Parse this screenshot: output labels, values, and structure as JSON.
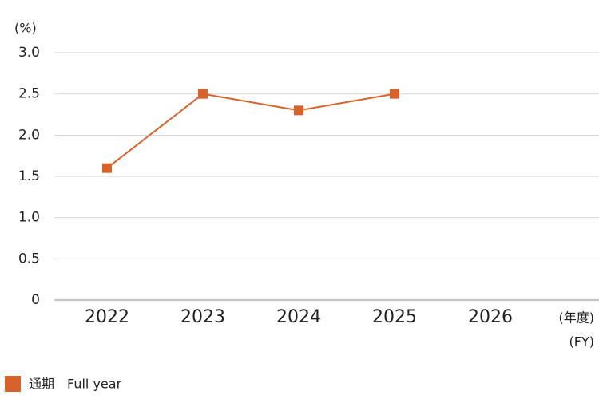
{
  "chart_data": {
    "type": "line",
    "y_unit": "(%)",
    "x_unit": [
      "(年度)",
      "(FY)"
    ],
    "categories": [
      "2022",
      "2023",
      "2024",
      "2025",
      "2026"
    ],
    "series": [
      {
        "name": "通期　Full year",
        "color": "#d9622b",
        "values": [
          1.6,
          2.5,
          2.3,
          2.5,
          null
        ]
      }
    ],
    "ylim": [
      0,
      3.0
    ],
    "yticks": [
      0,
      0.5,
      {
        "value": 1.0,
        "label": "1.0"
      },
      1.5,
      {
        "value": 2.0,
        "label": "2.0"
      },
      2.5,
      {
        "value": 3.0,
        "label": "3.0"
      }
    ],
    "grid": true
  }
}
